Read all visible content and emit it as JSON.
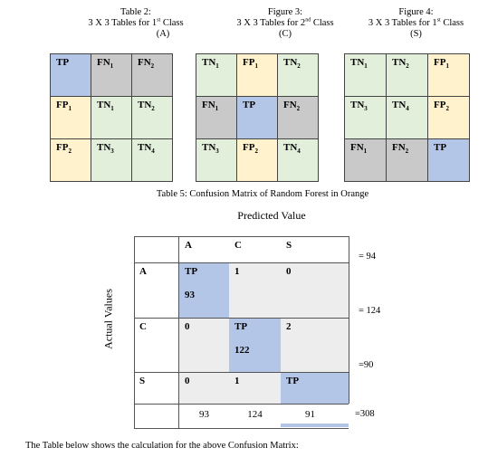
{
  "captions": {
    "t2": {
      "line1": "Table 2:",
      "line2a": "3 X 3 Tables for 1",
      "line2sup": "st",
      "line2b": " Class",
      "line3": "(A)"
    },
    "f3": {
      "line1": "Figure 3:",
      "line2a": "3 X 3 Tables for 2",
      "line2sup": "nd",
      "line2b": " Class",
      "line3": "(C)"
    },
    "f4": {
      "line1": "Figure 4:",
      "line2a": "3 X 3 Tables for 1",
      "line2sup": "st",
      "line2b": " Class",
      "line3": "(S)"
    }
  },
  "mini_tables": [
    {
      "cells": [
        {
          "t": "TP",
          "s": "",
          "c": "blue"
        },
        {
          "t": "FN",
          "s": "1",
          "c": "grey"
        },
        {
          "t": "FN",
          "s": "2",
          "c": "grey"
        },
        {
          "t": "FP",
          "s": "1",
          "c": "yellow"
        },
        {
          "t": "TN",
          "s": "1",
          "c": "green"
        },
        {
          "t": "TN",
          "s": "2",
          "c": "green"
        },
        {
          "t": "FP",
          "s": "2",
          "c": "yellow"
        },
        {
          "t": "TN",
          "s": "3",
          "c": "green"
        },
        {
          "t": "TN",
          "s": "4",
          "c": "green"
        }
      ]
    },
    {
      "cells": [
        {
          "t": "TN",
          "s": "1",
          "c": "green"
        },
        {
          "t": "FP",
          "s": "1",
          "c": "yellow"
        },
        {
          "t": "TN",
          "s": "2",
          "c": "green"
        },
        {
          "t": "FN",
          "s": "1",
          "c": "grey"
        },
        {
          "t": "TP",
          "s": "",
          "c": "blue"
        },
        {
          "t": "FN",
          "s": "2",
          "c": "grey"
        },
        {
          "t": "TN",
          "s": "3",
          "c": "green"
        },
        {
          "t": "FP",
          "s": "2",
          "c": "yellow"
        },
        {
          "t": "TN",
          "s": "4",
          "c": "green"
        }
      ]
    },
    {
      "cells": [
        {
          "t": "TN",
          "s": "1",
          "c": "green"
        },
        {
          "t": "TN",
          "s": "2",
          "c": "green"
        },
        {
          "t": "FP",
          "s": "1",
          "c": "yellow"
        },
        {
          "t": "TN",
          "s": "3",
          "c": "green"
        },
        {
          "t": "TN",
          "s": "4",
          "c": "green"
        },
        {
          "t": "FP",
          "s": "2",
          "c": "yellow"
        },
        {
          "t": "FN",
          "s": "1",
          "c": "grey"
        },
        {
          "t": "FN",
          "s": "2",
          "c": "grey"
        },
        {
          "t": "TP",
          "s": "",
          "c": "blue"
        }
      ]
    }
  ],
  "table5_caption": "Table 5: Confusion Matrix of Random Forest in Orange",
  "predicted_label": "Predicted Value",
  "actual_label": "Actual Values",
  "matrix": {
    "col_headers": [
      "A",
      "C",
      "S"
    ],
    "row_headers": [
      "A",
      "C",
      "S"
    ],
    "row_A": {
      "tp_label": "TP",
      "tp_value": "93",
      "c": "1",
      "s": "0"
    },
    "row_C": {
      "a": "0",
      "tp_label": "TP",
      "tp_value": "122",
      "s": "2"
    },
    "row_S": {
      "a": "0",
      "c": "1",
      "tp_label": "TP"
    },
    "col_totals": [
      "93",
      "124",
      "91"
    ],
    "row_totals": [
      "= 94",
      "= 124",
      "=90",
      "=308"
    ]
  },
  "footer_text": "The Table below shows the calculation for the above Confusion Matrix:"
}
